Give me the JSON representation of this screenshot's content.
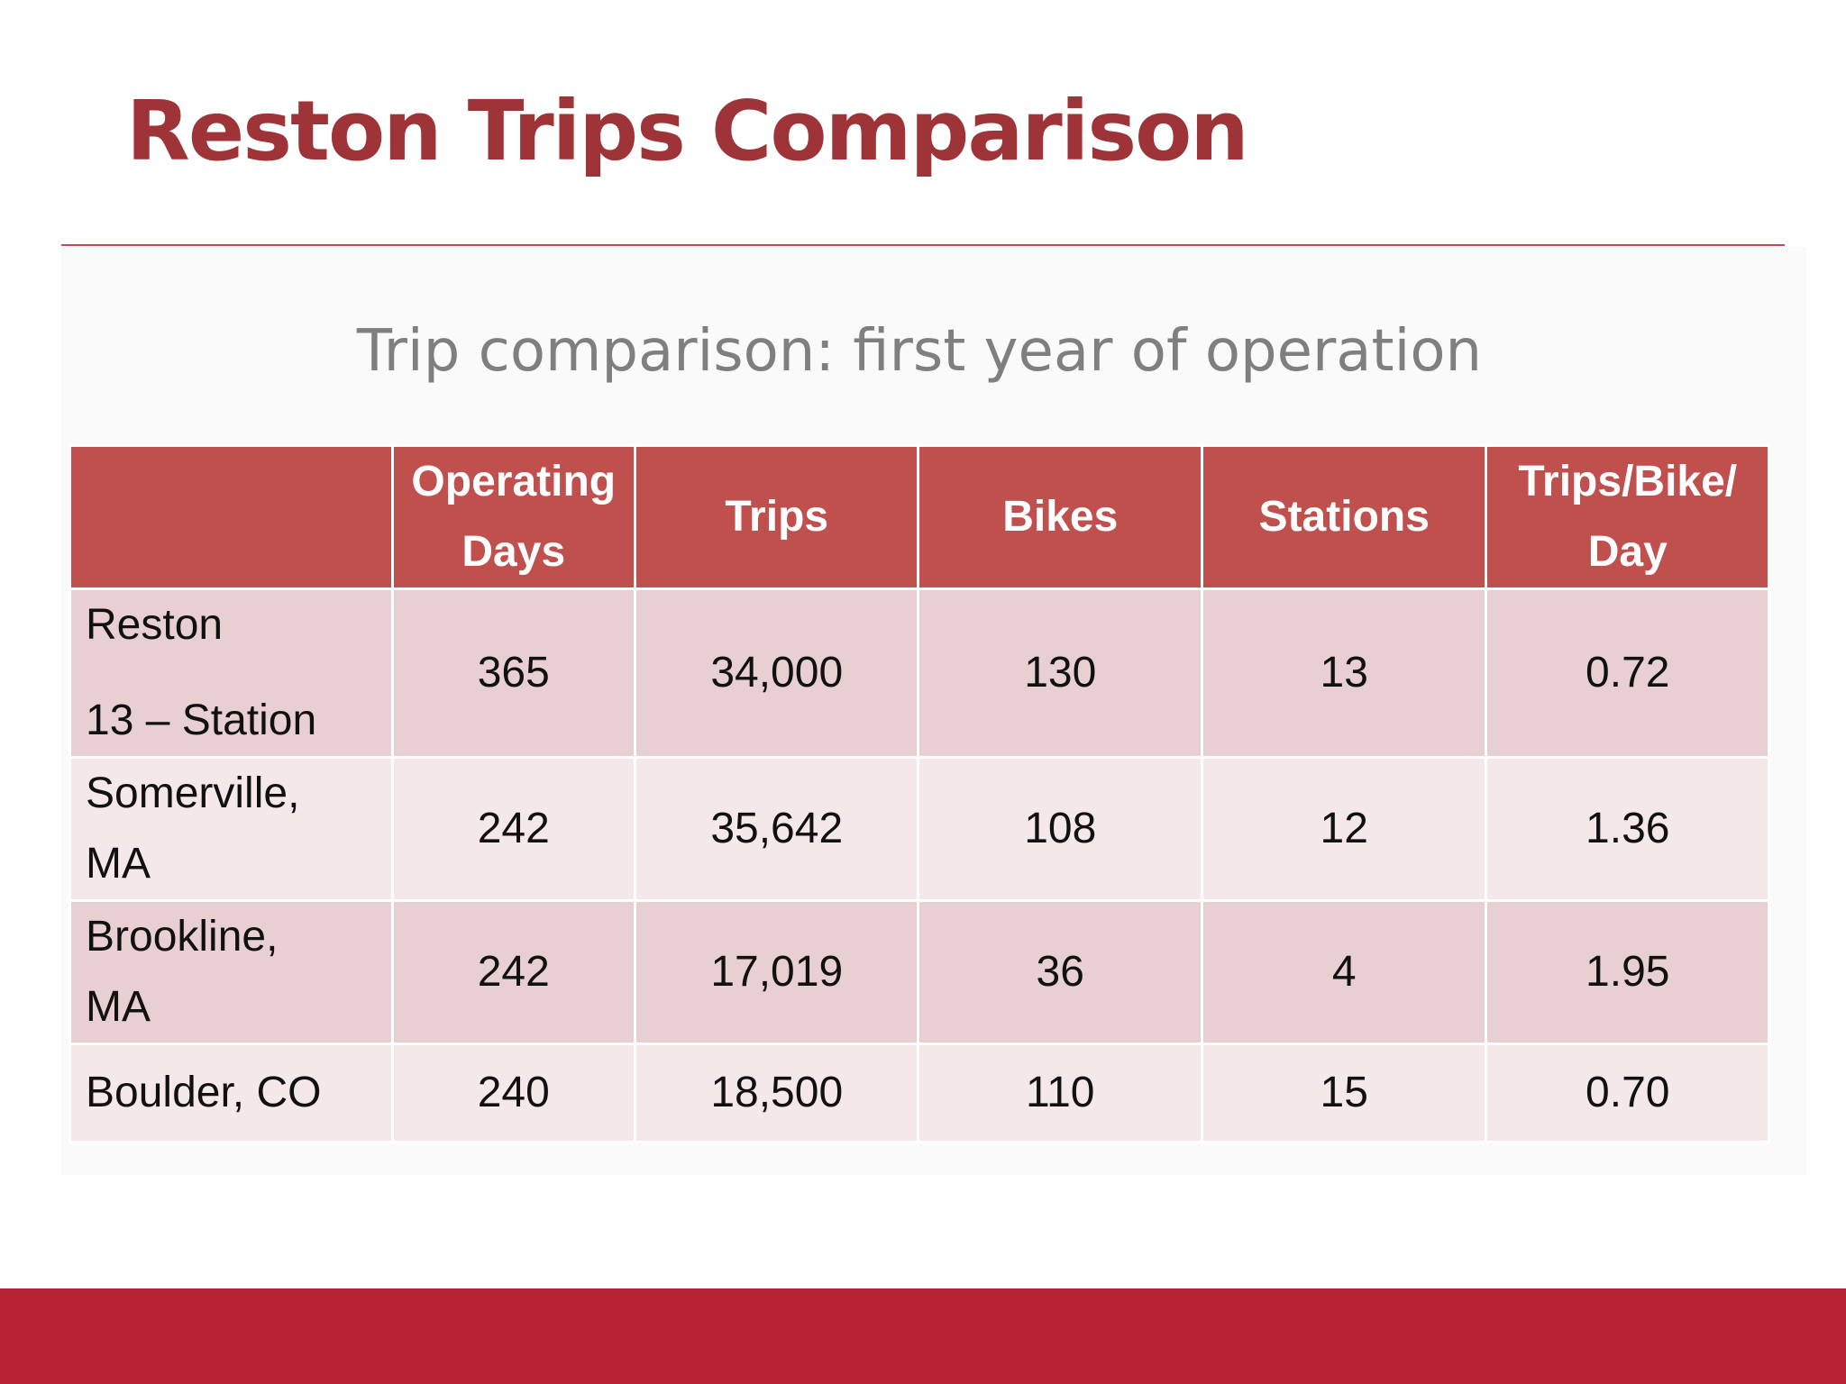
{
  "slide": {
    "title": "Reston Trips Comparison",
    "subtitle": "Trip comparison: first year of operation",
    "colors": {
      "title": "#9e3437",
      "rule": "#c24a55",
      "header_fill": "#c0504e",
      "row_dark": "#e8d0d2",
      "row_light": "#f4e8e9",
      "footer_band": "#b52234",
      "subtitle": "#7f7f7f"
    }
  },
  "table": {
    "headers": [
      {
        "lines": [
          "",
          ""
        ]
      },
      {
        "lines": [
          "Operating",
          "Days"
        ]
      },
      {
        "lines": [
          "Trips",
          ""
        ]
      },
      {
        "lines": [
          "Bikes",
          ""
        ]
      },
      {
        "lines": [
          "Stations",
          ""
        ]
      },
      {
        "lines": [
          "Trips/Bike/",
          "Day"
        ]
      }
    ],
    "rows": [
      {
        "name_lines": [
          "Reston",
          "13 – Station"
        ],
        "operating_days": "365",
        "trips": "34,000",
        "bikes": "130",
        "stations": "13",
        "trips_per_bike_day": "0.72"
      },
      {
        "name_lines": [
          "Somerville,",
          "MA"
        ],
        "operating_days": "242",
        "trips": "35,642",
        "bikes": "108",
        "stations": "12",
        "trips_per_bike_day": "1.36"
      },
      {
        "name_lines": [
          "Brookline,",
          "MA"
        ],
        "operating_days": "242",
        "trips": "17,019",
        "bikes": "36",
        "stations": "4",
        "trips_per_bike_day": "1.95"
      },
      {
        "name_lines": [
          "Boulder, CO",
          ""
        ],
        "operating_days": "240",
        "trips": "18,500",
        "bikes": "110",
        "stations": "15",
        "trips_per_bike_day": "0.70"
      }
    ]
  }
}
